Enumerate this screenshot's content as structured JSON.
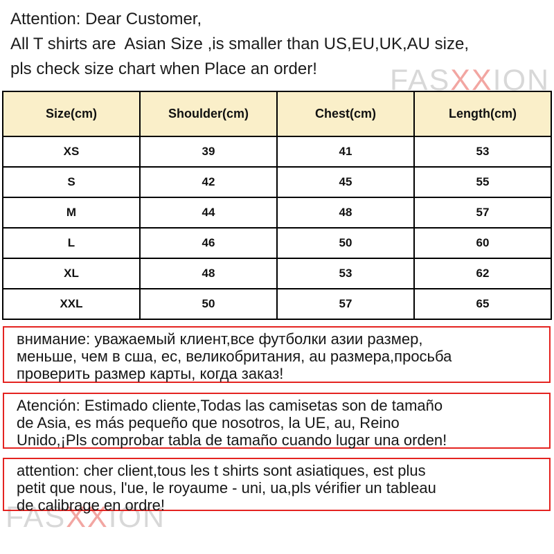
{
  "notice_en": {
    "lines": [
      "Attention: Dear Customer,",
      "All T shirts are  Asian Size ,is smaller than US,EU,UK,AU size,",
      "pls check size chart when Place an order!"
    ]
  },
  "size_table": {
    "headers": [
      "Size(cm)",
      "Shoulder(cm)",
      "Chest(cm)",
      "Length(cm)"
    ],
    "rows": [
      [
        "XS",
        "39",
        "41",
        "53"
      ],
      [
        "S",
        "42",
        "45",
        "55"
      ],
      [
        "M",
        "44",
        "48",
        "57"
      ],
      [
        "L",
        "46",
        "50",
        "60"
      ],
      [
        "XL",
        "48",
        "53",
        "62"
      ],
      [
        "XXL",
        "50",
        "57",
        "65"
      ]
    ]
  },
  "notice_ru": {
    "lines": [
      "внимание: уважаемый клиент,все футболки азии размер,",
      "меньше, чем в сша, ес, великобритания, au размера,просьба",
      "проверить размер карты, когда заказ!"
    ]
  },
  "notice_es": {
    "lines": [
      "Atención: Estimado cliente,Todas las camisetas son de tamaño",
      "de Asia, es más pequeño que nosotros, la UE, au, Reino",
      "Unido,¡Pls comprobar tabla de tamaño cuando lugar una orden!"
    ]
  },
  "notice_fr": {
    "lines": [
      "attention: cher client,tous les t shirts sont asiatiques, est plus",
      "petit que nous, l'ue, le royaume - uni, ua,pls vérifier un tableau",
      "de calibrage en ordre!"
    ]
  },
  "watermark": {
    "prefix": "FAS",
    "middle": "XX",
    "suffix": "ION"
  },
  "colors": {
    "header_bg": "#faefc9",
    "table_border": "#000000",
    "notice_border": "#e42320",
    "watermark_gray": "#d8d8d8",
    "watermark_red": "#f2a6a2"
  }
}
